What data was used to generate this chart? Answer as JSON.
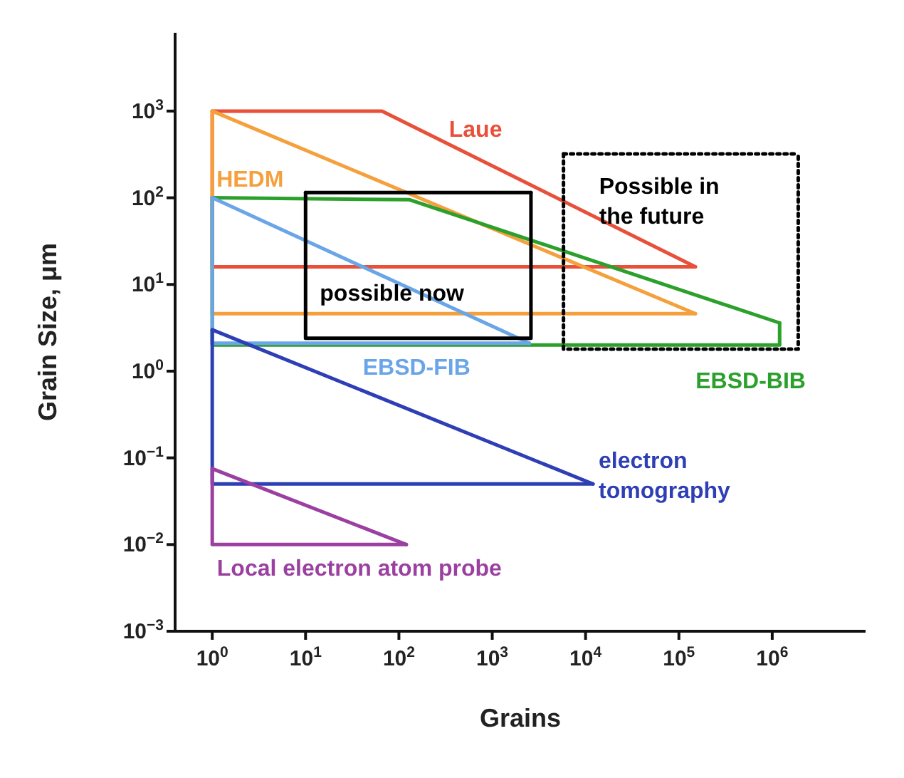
{
  "chart_data": {
    "type": "line",
    "xlabel": "Grains",
    "ylabel": "Grain Size, μm",
    "log": "xy",
    "grid": false,
    "legend": false,
    "marker": "none",
    "line_style": "solid",
    "xlim": [
      0.4,
      10000000
    ],
    "ylim": [
      0.001,
      8000
    ],
    "xticks": [
      {
        "value": 1,
        "label": "10$^{0}$"
      },
      {
        "value": 10,
        "label": "10$^{1}$"
      },
      {
        "value": 100,
        "label": "10$^{2}$"
      },
      {
        "value": 1000,
        "label": "10$^{3}$"
      },
      {
        "value": 10000,
        "label": "10$^{4}$"
      },
      {
        "value": 100000,
        "label": "10$^{5}$"
      },
      {
        "value": 1000000,
        "label": "10$^{6}$"
      }
    ],
    "yticks": [
      {
        "value": 0.001,
        "label": "10$^{−3}$"
      },
      {
        "value": 0.01,
        "label": "10$^{−2}$"
      },
      {
        "value": 0.1,
        "label": "10$^{−1}$"
      },
      {
        "value": 1,
        "label": "10$^{0}$"
      },
      {
        "value": 10,
        "label": "10$^{1}$"
      },
      {
        "value": 100,
        "label": "10$^{2}$"
      },
      {
        "value": 1000,
        "label": "10$^{3}$"
      }
    ],
    "series": [
      {
        "name": "Laue",
        "color": "#e8503a",
        "x": [
          1,
          66,
          150000
        ],
        "values": [
          1000,
          1000,
          16
        ]
      },
      {
        "color": "#e8503a",
        "x": [
          1,
          1,
          150000
        ],
        "values": [
          1000,
          16,
          16
        ]
      },
      {
        "name": "HEDM",
        "color": "#f5a03c",
        "x": [
          1,
          150000
        ],
        "values": [
          1000,
          4.6
        ]
      },
      {
        "color": "#f5a03c",
        "x": [
          1,
          1,
          150000
        ],
        "values": [
          1000,
          4.6,
          4.6
        ]
      },
      {
        "name": "EBSD-BIB",
        "color": "#2ca02c",
        "x": [
          1,
          130,
          1200000
        ],
        "values": [
          100,
          95,
          3.6
        ]
      },
      {
        "color": "#2ca02c",
        "x": [
          1,
          1,
          1200000,
          1200000
        ],
        "values": [
          100,
          2,
          2,
          3.6
        ]
      },
      {
        "name": "EBSD-FIB",
        "color": "#6aa5e8",
        "x": [
          1,
          2500
        ],
        "values": [
          100,
          2.1
        ]
      },
      {
        "color": "#6aa5e8",
        "x": [
          1,
          1,
          2500
        ],
        "values": [
          100,
          2.1,
          2.1
        ]
      },
      {
        "name": "electron\ntomography",
        "color": "#2e3fb5",
        "x": [
          1,
          12000
        ],
        "values": [
          3,
          0.05
        ]
      },
      {
        "color": "#2e3fb5",
        "x": [
          1,
          1,
          12000
        ],
        "values": [
          3,
          0.05,
          0.05
        ]
      },
      {
        "name": "Local electron atom probe",
        "color": "#9b3fa0",
        "x": [
          1,
          120
        ],
        "values": [
          0.075,
          0.01
        ]
      },
      {
        "color": "#9b3fa0",
        "x": [
          1,
          1,
          120
        ],
        "values": [
          0.075,
          0.01,
          0.01
        ]
      },
      {
        "color": "#000000",
        "line_style": "solid",
        "x": [
          10,
          2600
        ],
        "values": [
          115,
          115
        ]
      },
      {
        "color": "#000000",
        "line_style": "solid",
        "x": [
          10,
          10,
          2600,
          2600
        ],
        "values": [
          115,
          2.4,
          2.4,
          115
        ]
      },
      {
        "color": "#000000",
        "line_style": "dotted",
        "x": [
          5800,
          1900000
        ],
        "values": [
          320,
          320
        ]
      },
      {
        "color": "#000000",
        "line_style": "dotted",
        "x": [
          5800,
          5800,
          1900000,
          1900000
        ],
        "values": [
          320,
          1.8,
          1.8,
          320
        ]
      }
    ],
    "annotations": [
      "possible now",
      "Possible in\nthe future"
    ]
  }
}
